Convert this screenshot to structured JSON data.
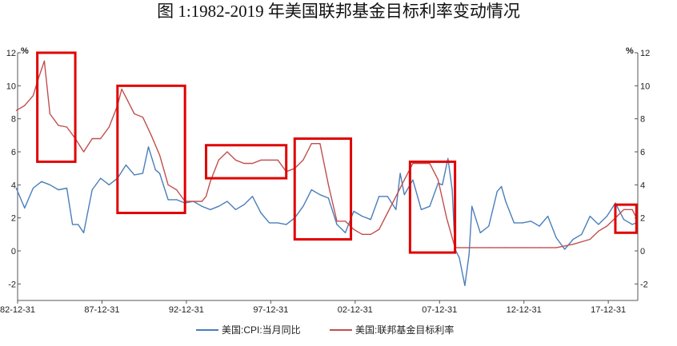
{
  "title": "图 1:1982-2019 年美国联邦基金目标利率变动情况",
  "chart_data": {
    "type": "line",
    "title": "图 1:1982-2019 年美国联邦基金目标利率变动情况",
    "ylabel_left": "%",
    "ylabel_right": "%",
    "ylim": [
      -3,
      12
    ],
    "yticks": [
      -2,
      0,
      2,
      4,
      6,
      8,
      10,
      12
    ],
    "ytick_labels": [
      "-2",
      "0",
      "2",
      "4",
      "6",
      "8",
      "10",
      "12"
    ],
    "xlim": [
      "1982-12-31",
      "2019-09-30"
    ],
    "xtick_labels": [
      "82-12-31",
      "87-12-31",
      "92-12-31",
      "97-12-31",
      "02-12-31",
      "07-12-31",
      "12-12-31",
      "17-12-31"
    ],
    "grid": false,
    "legend_position": "bottom",
    "series": [
      {
        "name": "美国:CPI:当月同比",
        "color": "#4a7ebb",
        "x": [
          "1982-12",
          "1983-06",
          "1983-12",
          "1984-06",
          "1984-12",
          "1985-06",
          "1985-12",
          "1986-04",
          "1986-08",
          "1986-12",
          "1987-06",
          "1987-12",
          "1988-06",
          "1988-12",
          "1989-06",
          "1989-12",
          "1990-06",
          "1990-10",
          "1991-03",
          "1991-06",
          "1991-12",
          "1992-06",
          "1992-12",
          "1993-06",
          "1993-12",
          "1994-06",
          "1994-12",
          "1995-06",
          "1995-12",
          "1996-06",
          "1996-12",
          "1997-06",
          "1997-12",
          "1998-06",
          "1998-12",
          "1999-06",
          "1999-12",
          "2000-06",
          "2000-12",
          "2001-06",
          "2001-12",
          "2002-06",
          "2002-12",
          "2003-06",
          "2003-12",
          "2004-06",
          "2004-12",
          "2005-06",
          "2005-09",
          "2005-12",
          "2006-06",
          "2006-12",
          "2007-06",
          "2007-12",
          "2008-03",
          "2008-07",
          "2008-10",
          "2008-12",
          "2009-03",
          "2009-07",
          "2009-10",
          "2009-12",
          "2010-06",
          "2010-12",
          "2011-06",
          "2011-09",
          "2011-12",
          "2012-06",
          "2012-12",
          "2013-06",
          "2013-12",
          "2014-06",
          "2014-12",
          "2015-06",
          "2015-12",
          "2016-06",
          "2016-12",
          "2017-06",
          "2017-12",
          "2018-06",
          "2018-12",
          "2019-06",
          "2019-09"
        ],
        "values": [
          3.8,
          2.6,
          3.8,
          4.2,
          4.0,
          3.7,
          3.8,
          1.6,
          1.6,
          1.1,
          3.7,
          4.4,
          4.0,
          4.4,
          5.2,
          4.6,
          4.7,
          6.3,
          4.9,
          4.7,
          3.1,
          3.1,
          2.9,
          3.0,
          2.7,
          2.5,
          2.7,
          3.0,
          2.5,
          2.8,
          3.3,
          2.3,
          1.7,
          1.7,
          1.6,
          2.0,
          2.7,
          3.7,
          3.4,
          3.2,
          1.6,
          1.1,
          2.4,
          2.1,
          1.9,
          3.3,
          3.3,
          2.5,
          4.7,
          3.4,
          4.3,
          2.5,
          2.7,
          4.1,
          4.0,
          5.6,
          3.7,
          0.1,
          -0.4,
          -2.1,
          -0.2,
          2.7,
          1.1,
          1.5,
          3.6,
          3.9,
          3.0,
          1.7,
          1.7,
          1.8,
          1.5,
          2.1,
          0.8,
          0.1,
          0.7,
          1.0,
          2.1,
          1.6,
          2.1,
          2.9,
          1.9,
          1.6,
          1.7
        ]
      },
      {
        "name": "美国:联邦基金目标利率",
        "color": "#c0504d",
        "x": [
          "1982-12",
          "1983-06",
          "1983-12",
          "1984-04",
          "1984-08",
          "1984-12",
          "1985-06",
          "1985-12",
          "1986-06",
          "1986-12",
          "1987-06",
          "1987-12",
          "1988-06",
          "1988-12",
          "1989-03",
          "1989-06",
          "1989-12",
          "1990-06",
          "1990-12",
          "1991-06",
          "1991-12",
          "1992-06",
          "1992-12",
          "1993-06",
          "1993-12",
          "1994-03",
          "1994-06",
          "1994-12",
          "1995-06",
          "1995-12",
          "1996-06",
          "1996-12",
          "1997-06",
          "1997-12",
          "1998-06",
          "1998-12",
          "1999-06",
          "1999-12",
          "2000-06",
          "2000-12",
          "2001-06",
          "2001-12",
          "2002-06",
          "2002-12",
          "2003-06",
          "2003-12",
          "2004-06",
          "2004-12",
          "2005-06",
          "2005-12",
          "2006-06",
          "2006-12",
          "2007-06",
          "2007-12",
          "2008-06",
          "2008-12",
          "2009-12",
          "2010-12",
          "2011-12",
          "2012-12",
          "2013-12",
          "2014-12",
          "2015-12",
          "2016-12",
          "2017-06",
          "2017-12",
          "2018-06",
          "2018-12",
          "2019-06",
          "2019-09"
        ],
        "values": [
          8.5,
          8.8,
          9.4,
          10.5,
          11.5,
          8.3,
          7.6,
          7.5,
          6.8,
          6.0,
          6.8,
          6.8,
          7.5,
          8.8,
          9.8,
          9.3,
          8.3,
          8.1,
          7.0,
          5.8,
          4.0,
          3.7,
          3.0,
          3.0,
          3.0,
          3.3,
          4.2,
          5.5,
          6.0,
          5.5,
          5.3,
          5.3,
          5.5,
          5.5,
          5.5,
          4.8,
          5.0,
          5.5,
          6.5,
          6.5,
          4.0,
          1.8,
          1.8,
          1.3,
          1.0,
          1.0,
          1.3,
          2.3,
          3.3,
          4.3,
          5.3,
          5.3,
          5.3,
          4.3,
          2.0,
          0.2,
          0.2,
          0.2,
          0.2,
          0.2,
          0.2,
          0.2,
          0.4,
          0.7,
          1.2,
          1.5,
          2.0,
          2.5,
          2.5,
          2.0
        ]
      }
    ],
    "highlight_boxes": [
      {
        "from": "1984-03",
        "to": "1986-06",
        "ymin": 5.4,
        "ymax": 12.0
      },
      {
        "from": "1988-12",
        "to": "1992-12",
        "ymin": 2.3,
        "ymax": 10.0
      },
      {
        "from": "1994-03",
        "to": "1998-12",
        "ymin": 4.4,
        "ymax": 6.4
      },
      {
        "from": "1999-06",
        "to": "2002-10",
        "ymin": 0.7,
        "ymax": 6.8
      },
      {
        "from": "2006-04",
        "to": "2008-12",
        "ymin": -0.1,
        "ymax": 5.4
      },
      {
        "from": "2018-06",
        "to": "2019-09",
        "ymin": 1.1,
        "ymax": 2.8
      }
    ],
    "highlight_color": "#e00000"
  }
}
